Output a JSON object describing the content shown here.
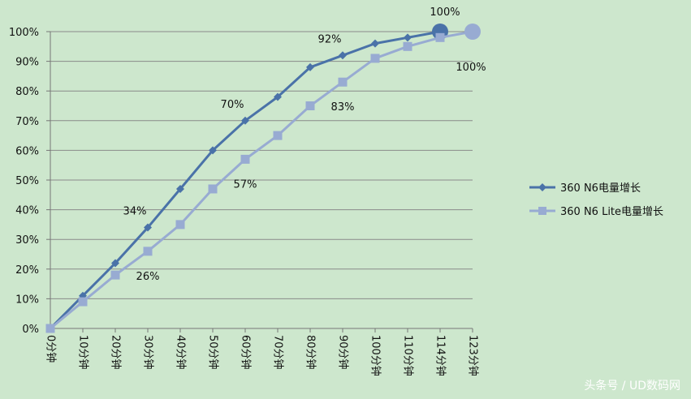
{
  "chart_data": {
    "type": "line",
    "categories": [
      "0分钟",
      "10分钟",
      "20分钟",
      "30分钟",
      "40分钟",
      "50分钟",
      "60分钟",
      "70分钟",
      "80分钟",
      "90分钟",
      "100分钟",
      "110分钟",
      "114分钟",
      "123分钟"
    ],
    "ylim": [
      0,
      100
    ],
    "yticks": [
      "0%",
      "10%",
      "20%",
      "30%",
      "40%",
      "50%",
      "60%",
      "70%",
      "80%",
      "90%",
      "100%"
    ],
    "grid": true,
    "legend_position": "right",
    "series": [
      {
        "name": "360 N6电量增长",
        "color": "#4a72a8",
        "marker": "diamond",
        "values": [
          0,
          11,
          22,
          34,
          47,
          60,
          70,
          78,
          88,
          92,
          96,
          98,
          100,
          null
        ],
        "labels": [
          {
            "index": 3,
            "text": "34%"
          },
          {
            "index": 6,
            "text": "70%"
          },
          {
            "index": 9,
            "text": "92%"
          },
          {
            "index": 12,
            "text": "100%"
          }
        ]
      },
      {
        "name": "360 N6 Lite电量增长",
        "color": "#98abd2",
        "marker": "square",
        "values": [
          0,
          9,
          18,
          26,
          35,
          47,
          57,
          65,
          75,
          83,
          91,
          95,
          98,
          100
        ],
        "labels": [
          {
            "index": 3,
            "text": "26%"
          },
          {
            "index": 6,
            "text": "57%"
          },
          {
            "index": 9,
            "text": "83%"
          },
          {
            "index": 13,
            "text": "100%"
          }
        ]
      }
    ]
  },
  "watermark": "头条号 / UD数码网"
}
